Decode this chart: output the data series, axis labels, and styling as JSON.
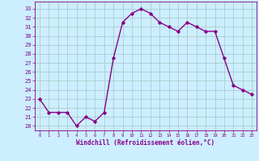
{
  "x": [
    0,
    1,
    2,
    3,
    4,
    5,
    6,
    7,
    8,
    9,
    10,
    11,
    12,
    13,
    14,
    15,
    16,
    17,
    18,
    19,
    20,
    21,
    22,
    23
  ],
  "y": [
    23.0,
    21.5,
    21.5,
    21.5,
    20.0,
    21.0,
    20.5,
    21.5,
    27.5,
    31.5,
    32.5,
    33.0,
    32.5,
    31.5,
    31.0,
    30.5,
    31.5,
    31.0,
    30.5,
    30.5,
    27.5,
    24.5,
    24.0,
    23.5
  ],
  "xlabel": "Windchill (Refroidissement éolien,°C)",
  "xlim": [
    -0.5,
    23.5
  ],
  "ylim": [
    19.5,
    33.8
  ],
  "yticks": [
    20,
    21,
    22,
    23,
    24,
    25,
    26,
    27,
    28,
    29,
    30,
    31,
    32,
    33
  ],
  "xticks": [
    0,
    1,
    2,
    3,
    4,
    5,
    6,
    7,
    8,
    9,
    10,
    11,
    12,
    13,
    14,
    15,
    16,
    17,
    18,
    19,
    20,
    21,
    22,
    23
  ],
  "line_color": "#880088",
  "marker": "D",
  "marker_size": 1.8,
  "bg_color": "#cceeff",
  "grid_color": "#aacccc",
  "tick_label_color": "#880088",
  "axis_label_color": "#880088",
  "line_width": 1.0
}
